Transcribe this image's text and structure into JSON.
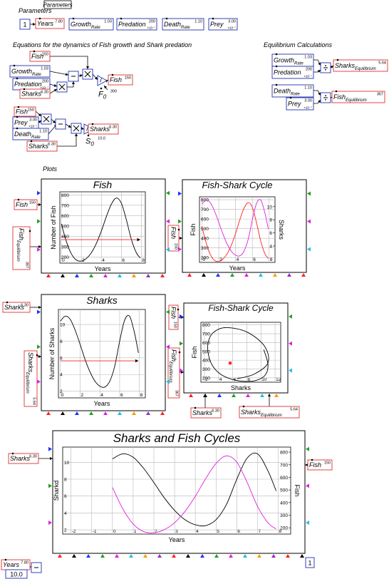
{
  "header": {
    "button": "Parameters",
    "title": "Parameters"
  },
  "sections": {
    "equations": "Equations for the dynamics of Fish growth and Shark predation",
    "equilibrium": "Equilibrium Calculations",
    "plots": "Plots"
  },
  "blocks": [
    {
      "value": "1"
    },
    {
      "name": "Years",
      "value": "7.80"
    },
    {
      "name": "Growth",
      "sub": "Rate",
      "value": "1.03"
    },
    {
      "name": "Predation",
      "value": "200",
      "scale": "×10⁻⁷"
    },
    {
      "name": "Death",
      "sub": "Rate",
      "value": "1.10"
    },
    {
      "name": "Prey",
      "value": "3.00",
      "scale": "×10⁻⁷"
    },
    {
      "name": "Fish",
      "value": "150"
    },
    {
      "name": "Growth",
      "sub": "Rate",
      "value": "1.03"
    },
    {
      "name": "Predation",
      "value": "200",
      "scale": "×10⁻⁷"
    },
    {
      "name": "Sharks",
      "value": "6.30"
    },
    {
      "name": "Fish",
      "value": "150"
    },
    {
      "name": "F",
      "sub": "0",
      "value": "300"
    },
    {
      "name": "Fish",
      "value": "150"
    },
    {
      "name": "Prey",
      "value": "3.00",
      "scale": "×10⁻⁷"
    },
    {
      "name": "Death",
      "sub": "Rate",
      "value": "1.10"
    },
    {
      "name": "Sharks",
      "value": "6.30"
    },
    {
      "name": "Sharks",
      "value": "6.30"
    },
    {
      "name": "S",
      "sub": "0",
      "value": "10.0"
    },
    {
      "name": "Growth",
      "sub": "Rate",
      "value": "1.03"
    },
    {
      "name": "Predation",
      "value": "200",
      "scale": "×10⁻⁷"
    },
    {
      "name": "Sharks",
      "sub": "Equilibrium",
      "value": "5.64"
    },
    {
      "name": "Death",
      "sub": "Rate",
      "value": "1.10"
    },
    {
      "name": "Prey",
      "value": "3.00",
      "scale": "×10⁻⁷"
    },
    {
      "name": "Fish",
      "sub": "Equilibrium",
      "value": "367"
    },
    {
      "name": "Fish",
      "value": "150"
    },
    {
      "name": "Fish",
      "sub": "Equilibrium",
      "value": "367"
    },
    {
      "name": "Fish",
      "value": "150"
    },
    {
      "name": "Sharks",
      "value": "6.30"
    },
    {
      "name": "Sharks",
      "value": "6.30"
    },
    {
      "name": "Sharks",
      "sub": "Equilibrium",
      "value": "5.64"
    },
    {
      "name": "Fish",
      "value": "150"
    },
    {
      "name": "Fish",
      "sub": "Equilibrium",
      "value": "367"
    },
    {
      "name": "Sharks",
      "value": "6.30"
    },
    {
      "name": "Sharks",
      "sub": "Equilibrium",
      "value": "5.64"
    },
    {
      "name": "Sharks",
      "value": "6.30"
    },
    {
      "name": "Fish",
      "value": "150"
    },
    {
      "name": "Years",
      "value": "7.80"
    },
    {
      "value": "10.0"
    },
    {
      "value": "1"
    }
  ],
  "simulation": {
    "years": [
      0,
      0.5,
      1,
      1.5,
      2,
      2.5,
      3,
      3.5,
      4,
      4.5,
      5,
      5.5,
      6,
      6.5,
      7,
      7.5,
      7.9
    ],
    "fish": [
      520,
      350,
      230,
      170,
      160,
      185,
      240,
      330,
      450,
      590,
      710,
      770,
      720,
      560,
      370,
      240,
      190
    ],
    "sharks": [
      10.4,
      11,
      10.6,
      9.3,
      7.6,
      5.8,
      4.3,
      3.2,
      2.6,
      2.5,
      3.2,
      5,
      8,
      10.5,
      11,
      9,
      6.6
    ]
  },
  "plots": [
    {
      "title": "Fish",
      "xlabel": "Years",
      "ylabel": "Number of Fish",
      "xlim": [
        -0.15,
        8.4
      ],
      "ylim": [
        140,
        830
      ],
      "xticks": [
        0,
        2,
        4,
        6,
        8
      ],
      "yticks": [
        200,
        300,
        400,
        500,
        600,
        700,
        800
      ],
      "colors": [
        "#000000",
        "#ff2020"
      ]
    },
    {
      "title": "Fish-Shark Cycle",
      "xlabel": "Years",
      "ylabel": "Fish",
      "y2label": "Sharks",
      "xlim": [
        -0.3,
        8.7
      ],
      "ylim": [
        150,
        830
      ],
      "y2lim": [
        1.5,
        11.5
      ],
      "xticks": [
        0,
        2,
        4,
        6,
        8
      ],
      "yticks": [
        200,
        300,
        400,
        500,
        600,
        700,
        800
      ],
      "y2ticks": [
        4,
        6,
        8,
        10
      ],
      "colors": [
        "#ff2020",
        "#e020e0"
      ]
    },
    {
      "title": "Sharks",
      "xlabel": "Years",
      "ylabel": "Number of Sharks",
      "xlim": [
        -0.2,
        8.6
      ],
      "ylim": [
        1.2,
        11.8
      ],
      "xticks": [
        0,
        2,
        4,
        6,
        8
      ],
      "yticks": [
        2,
        4,
        6,
        8,
        10
      ],
      "colors": [
        "#000000",
        "#ff2020"
      ]
    },
    {
      "title": "Fish-Shark Cycle",
      "xlabel": "Sharks",
      "ylabel": "Fish",
      "xlim": [
        1.5,
        12.8
      ],
      "ylim": [
        150,
        830
      ],
      "xticks": [
        2,
        4,
        6,
        8,
        10,
        12
      ],
      "yticks": [
        200,
        300,
        400,
        500,
        600,
        700,
        800
      ],
      "colors": [
        "#000000",
        "#ff2020"
      ]
    },
    {
      "title": "Sharks and Fish Cycles",
      "xlabel": "Years",
      "ylabel": "Sharkd",
      "y2label": "Fish",
      "xlim": [
        -2.4,
        8.6
      ],
      "ylim": [
        1.5,
        11.8
      ],
      "y2lim": [
        150,
        840
      ],
      "xticks": [
        -2,
        -1,
        0,
        1,
        2,
        3,
        4,
        5,
        6,
        7,
        8
      ],
      "yticks": [
        2,
        4,
        6,
        8,
        10
      ],
      "y2ticks": [
        200,
        300,
        400,
        500,
        600,
        700,
        800
      ],
      "colors": [
        "#000000",
        "#e020e0"
      ]
    }
  ]
}
